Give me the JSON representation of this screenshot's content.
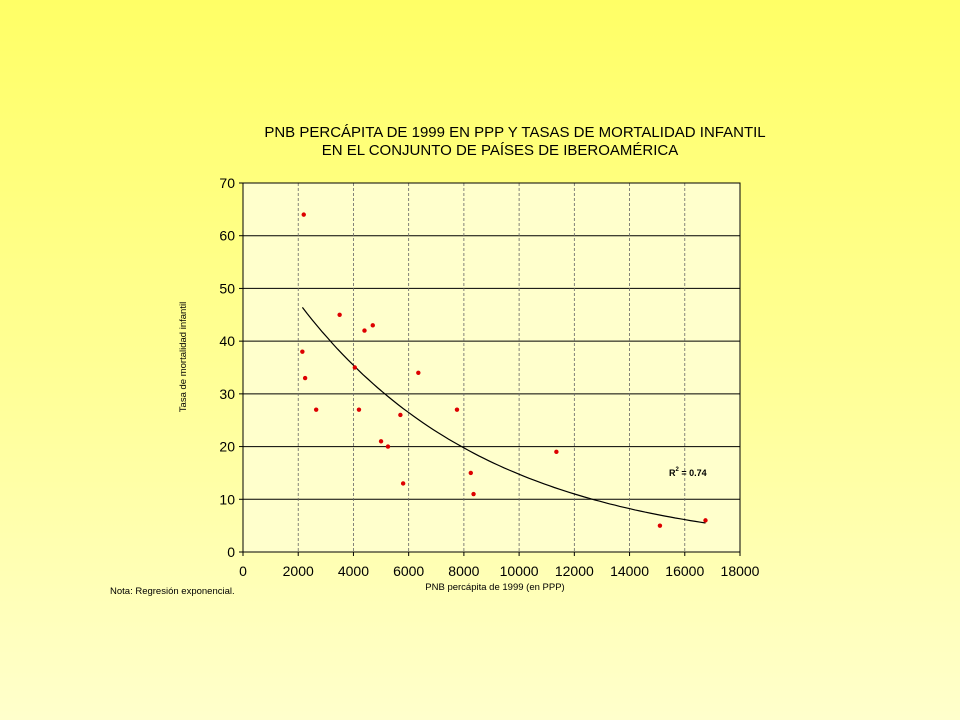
{
  "chart_data": {
    "type": "scatter",
    "title": [
      "PNB PERCÁPITA DE 1999 EN PPP Y TASAS DE MORTALIDAD INFANTIL",
      "EN EL CONJUNTO DE PAÍSES DE IBEROAMÉRICA"
    ],
    "xlabel": "PNB percápita de 1999 (en PPP)",
    "ylabel": "Tasa de mortalidad infantil",
    "xlim": [
      0,
      18000
    ],
    "ylim": [
      0,
      70
    ],
    "xticks": [
      0,
      2000,
      4000,
      6000,
      8000,
      10000,
      12000,
      14000,
      16000,
      18000
    ],
    "yticks": [
      0,
      10,
      20,
      30,
      40,
      50,
      60,
      70
    ],
    "grid": {
      "horizontal": "solid",
      "vertical": "dashed"
    },
    "points": [
      {
        "x": 2200,
        "y": 64
      },
      {
        "x": 2150,
        "y": 38
      },
      {
        "x": 2250,
        "y": 33
      },
      {
        "x": 2650,
        "y": 27
      },
      {
        "x": 3500,
        "y": 45
      },
      {
        "x": 4050,
        "y": 35
      },
      {
        "x": 4200,
        "y": 27
      },
      {
        "x": 4400,
        "y": 42
      },
      {
        "x": 4700,
        "y": 43
      },
      {
        "x": 5000,
        "y": 21
      },
      {
        "x": 5250,
        "y": 20
      },
      {
        "x": 5700,
        "y": 26
      },
      {
        "x": 5800,
        "y": 13
      },
      {
        "x": 6350,
        "y": 34
      },
      {
        "x": 7750,
        "y": 27
      },
      {
        "x": 8250,
        "y": 15
      },
      {
        "x": 8350,
        "y": 11
      },
      {
        "x": 11350,
        "y": 19
      },
      {
        "x": 15100,
        "y": 5
      },
      {
        "x": 16750,
        "y": 6
      }
    ],
    "trendline": {
      "type": "exponential",
      "a": 63.5,
      "b": -0.000146,
      "x_start": 2150,
      "x_end": 16750
    },
    "r2_label": {
      "prefix": "R",
      "sup": "2",
      "suffix": " = 0.74"
    },
    "colors": {
      "points": "#dd0000",
      "plot_bg": "#ffffcc",
      "trendline": "#000000",
      "grid": "#000000"
    }
  },
  "note": "Nota: Regresión exponencial."
}
